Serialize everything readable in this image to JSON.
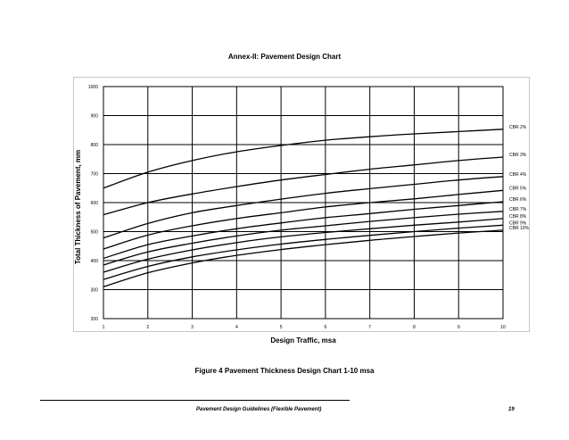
{
  "page": {
    "annex_title": "Annex-II: Pavement Design Chart",
    "figure_caption": "Figure 4 Pavement Thickness Design Chart 1-10 msa",
    "footer_text": "Pavement Design Guidelines (Flexible Pavement)",
    "page_number": "19"
  },
  "chart_data": {
    "type": "line",
    "title": "",
    "xlabel": "Design Traffic, msa",
    "ylabel": "Total Thickness of Pavement, mm",
    "xlim": [
      1,
      10
    ],
    "ylim": [
      200,
      1000
    ],
    "x_ticks": [
      1,
      2,
      3,
      4,
      5,
      6,
      7,
      8,
      9,
      10
    ],
    "y_ticks": [
      200,
      300,
      400,
      500,
      600,
      700,
      800,
      900,
      1000
    ],
    "grid": true,
    "legend": "none",
    "x": [
      1,
      2,
      3,
      4,
      5,
      6,
      7,
      8,
      9,
      10
    ],
    "series": [
      {
        "name": "CBR 2%",
        "values": [
          650,
          705,
          745,
          775,
          797,
          815,
          827,
          837,
          845,
          853
        ]
      },
      {
        "name": "CBR 3%",
        "values": [
          558,
          600,
          630,
          655,
          678,
          697,
          715,
          730,
          745,
          757
        ]
      },
      {
        "name": "CBR 4%",
        "values": [
          478,
          528,
          565,
          590,
          612,
          632,
          648,
          663,
          678,
          690
        ]
      },
      {
        "name": "CBR 5%",
        "values": [
          440,
          488,
          520,
          545,
          565,
          585,
          600,
          613,
          628,
          642
        ]
      },
      {
        "name": "CBR 6%",
        "values": [
          408,
          455,
          485,
          510,
          530,
          548,
          562,
          577,
          590,
          603
        ]
      },
      {
        "name": "CBR 7%",
        "values": [
          385,
          430,
          460,
          485,
          505,
          520,
          535,
          548,
          560,
          570
        ]
      },
      {
        "name": "CBR 8%",
        "values": [
          360,
          405,
          437,
          462,
          482,
          497,
          510,
          522,
          533,
          545
        ]
      },
      {
        "name": "CBR 9%",
        "values": [
          335,
          380,
          413,
          437,
          457,
          473,
          487,
          500,
          512,
          522
        ]
      },
      {
        "name": "CBR 10%",
        "values": [
          310,
          358,
          392,
          418,
          438,
          455,
          470,
          483,
          495,
          505
        ]
      }
    ]
  }
}
